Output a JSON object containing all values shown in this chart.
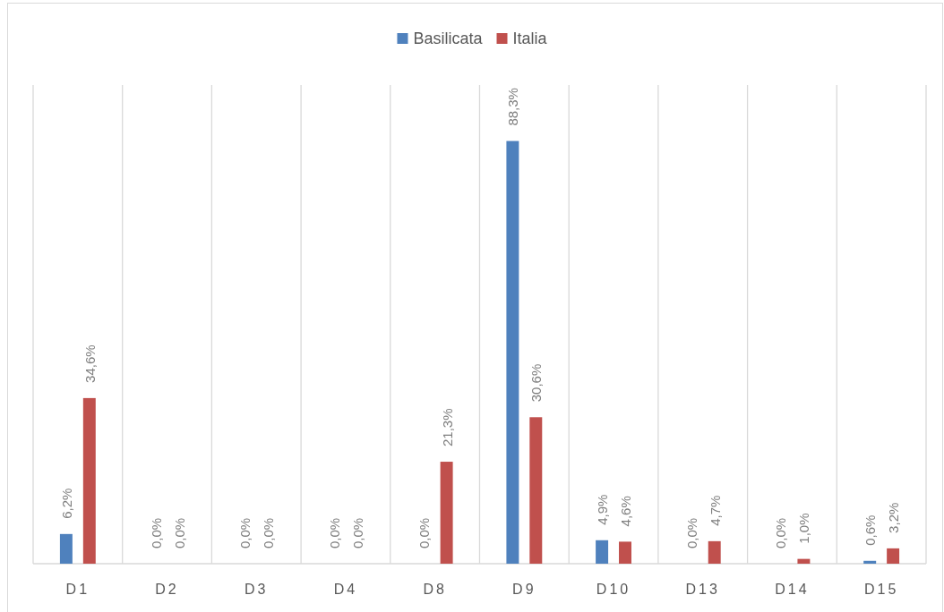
{
  "chart_data": {
    "type": "bar",
    "categories": [
      "D1",
      "D2",
      "D3",
      "D4",
      "D8",
      "D9",
      "D10",
      "D13",
      "D14",
      "D15"
    ],
    "series": [
      {
        "name": "Basilicata",
        "color": "#4f81bd",
        "values": [
          6.2,
          0,
          0,
          0,
          0,
          88.3,
          4.9,
          0,
          0,
          0.6
        ],
        "value_labels": [
          "6,2%",
          "0,0%",
          "0,0%",
          "0,0%",
          "0,0%",
          "88,3%",
          "4,9%",
          "0,0%",
          "0,0%",
          "0,6%"
        ]
      },
      {
        "name": "Italia",
        "color": "#c0504d",
        "values": [
          34.6,
          0,
          0,
          0,
          21.3,
          30.6,
          4.6,
          4.7,
          1.0,
          3.2
        ],
        "value_labels": [
          "34,6%",
          "0,0%",
          "0,0%",
          "0,0%",
          "21,3%",
          "30,6%",
          "4,6%",
          "4,7%",
          "1,0%",
          "3,2%"
        ]
      }
    ],
    "ylim": [
      0,
      100
    ],
    "grid": "x",
    "legend": "top",
    "tick_labels": "x"
  }
}
